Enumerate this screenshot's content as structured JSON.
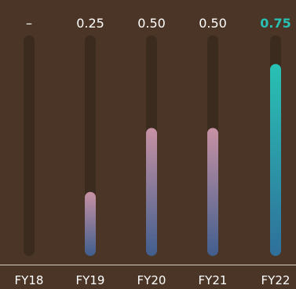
{
  "chart_data": {
    "type": "bar",
    "title": "",
    "xlabel": "",
    "ylabel": "",
    "categories": [
      "FY18",
      "FY19",
      "FY20",
      "FY21",
      "FY22"
    ],
    "values": [
      null,
      0.25,
      0.5,
      0.5,
      0.75
    ],
    "value_labels": [
      "–",
      "0.25",
      "0.50",
      "0.50",
      "0.75"
    ],
    "highlight_index": 4,
    "ylim": [
      0,
      1
    ],
    "grid": false,
    "legend": "none",
    "colors": {
      "background": "#4a3526",
      "track": "#3b2b1f",
      "bar_gradient_top": "#c892a4",
      "bar_gradient_bottom": "#405e8e",
      "highlight_gradient_top": "#28c1b3",
      "highlight_gradient_bottom": "#2f6f9b",
      "baseline": "#d8ccc2",
      "label": "#ffffff",
      "highlight_label": "#28c1b3"
    }
  }
}
